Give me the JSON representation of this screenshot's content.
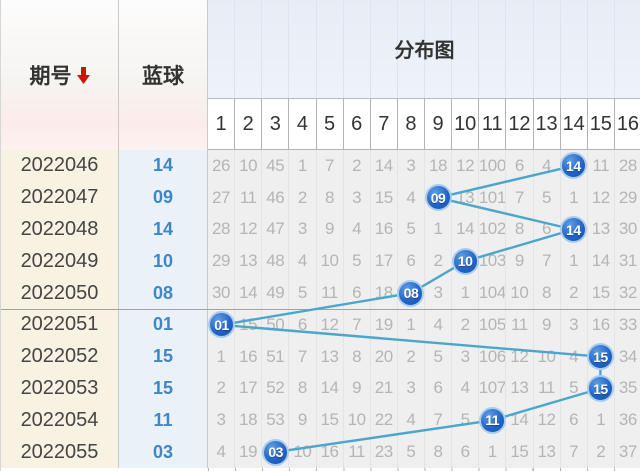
{
  "header": {
    "issue_col": "期号",
    "sort_icon": "down-arrow",
    "ball_col": "蓝球",
    "chart_col": "分布图",
    "columns": [
      "1",
      "2",
      "3",
      "4",
      "5",
      "6",
      "7",
      "8",
      "9",
      "10",
      "11",
      "12",
      "13",
      "14",
      "15",
      "16"
    ]
  },
  "colors": {
    "ball_fill": "#2063c8",
    "ball_ring": "#abccea",
    "trend_line": "#4aa6cc",
    "sort_arrow_red": "#c8160f",
    "issue_col_bg": "#f8f2e2",
    "ball_col_bg": "#eaf1f9",
    "chart_bg": "#efefef",
    "chart_header_bg": "#e7edf6",
    "miss_text": "#b5b5b5",
    "ball_text_blue": "#3f86c6"
  },
  "rows": [
    {
      "issue": "2022046",
      "ball": "14",
      "hit_col": 14,
      "cells": [
        "26",
        "10",
        "45",
        "1",
        "7",
        "2",
        "14",
        "3",
        "18",
        "12",
        "100",
        "6",
        "4",
        "",
        "11",
        "28"
      ]
    },
    {
      "issue": "2022047",
      "ball": "09",
      "hit_col": 9,
      "cells": [
        "27",
        "11",
        "46",
        "2",
        "8",
        "3",
        "15",
        "4",
        "",
        "13",
        "101",
        "7",
        "5",
        "1",
        "12",
        "29"
      ]
    },
    {
      "issue": "2022048",
      "ball": "14",
      "hit_col": 14,
      "cells": [
        "28",
        "12",
        "47",
        "3",
        "9",
        "4",
        "16",
        "5",
        "1",
        "14",
        "102",
        "8",
        "6",
        "",
        "13",
        "30"
      ]
    },
    {
      "issue": "2022049",
      "ball": "10",
      "hit_col": 10,
      "cells": [
        "29",
        "13",
        "48",
        "4",
        "10",
        "5",
        "17",
        "6",
        "2",
        "",
        "103",
        "9",
        "7",
        "1",
        "14",
        "31"
      ]
    },
    {
      "issue": "2022050",
      "ball": "08",
      "hit_col": 8,
      "cells": [
        "30",
        "14",
        "49",
        "5",
        "11",
        "6",
        "18",
        "",
        "3",
        "1",
        "104",
        "10",
        "8",
        "2",
        "15",
        "32"
      ]
    },
    {
      "issue": "2022051",
      "ball": "01",
      "hit_col": 1,
      "cells": [
        "",
        "15",
        "50",
        "6",
        "12",
        "7",
        "19",
        "1",
        "4",
        "2",
        "105",
        "11",
        "9",
        "3",
        "16",
        "33"
      ]
    },
    {
      "issue": "2022052",
      "ball": "15",
      "hit_col": 15,
      "cells": [
        "1",
        "16",
        "51",
        "7",
        "13",
        "8",
        "20",
        "2",
        "5",
        "3",
        "106",
        "12",
        "10",
        "4",
        "",
        "34"
      ]
    },
    {
      "issue": "2022053",
      "ball": "15",
      "hit_col": 15,
      "cells": [
        "2",
        "17",
        "52",
        "8",
        "14",
        "9",
        "21",
        "3",
        "6",
        "4",
        "107",
        "13",
        "11",
        "5",
        "",
        "35"
      ]
    },
    {
      "issue": "2022054",
      "ball": "11",
      "hit_col": 11,
      "cells": [
        "3",
        "18",
        "53",
        "9",
        "15",
        "10",
        "22",
        "4",
        "7",
        "5",
        "",
        "14",
        "12",
        "6",
        "1",
        "36"
      ]
    },
    {
      "issue": "2022055",
      "ball": "03",
      "hit_col": 3,
      "cells": [
        "4",
        "19",
        "",
        "10",
        "16",
        "11",
        "23",
        "5",
        "8",
        "6",
        "1",
        "15",
        "13",
        "7",
        "2",
        "37"
      ]
    }
  ],
  "chart_data": {
    "type": "line",
    "title": "分布图",
    "x": [
      "2022046",
      "2022047",
      "2022048",
      "2022049",
      "2022050",
      "2022051",
      "2022052",
      "2022053",
      "2022054",
      "2022055"
    ],
    "series": [
      {
        "name": "蓝球",
        "values": [
          14,
          9,
          14,
          10,
          8,
          1,
          15,
          15,
          11,
          3
        ]
      }
    ],
    "ylim": [
      1,
      16
    ],
    "grid": true,
    "legend_position": "none"
  }
}
